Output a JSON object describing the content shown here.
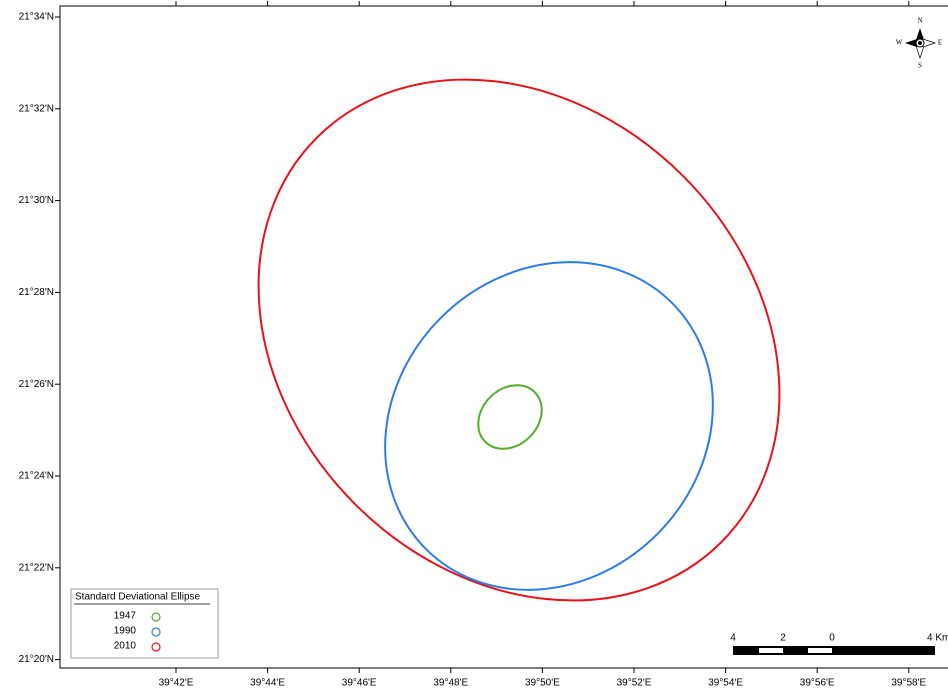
{
  "latitude_labels": [
    "21°34'N",
    "21°32'N",
    "21°30'N",
    "21°28'N",
    "21°26'N",
    "21°24'N",
    "21°22'N",
    "21°20'N"
  ],
  "longitude_labels": [
    "39°42'E",
    "39°44'E",
    "39°46'E",
    "39°48'E",
    "39°50'E",
    "39°52'E",
    "39°54'E",
    "39°56'E",
    "39°58'E"
  ],
  "legend": {
    "title": "Standard Deviational Ellipse",
    "items": [
      "1947",
      "1990",
      "2010"
    ]
  },
  "scale_bar": {
    "labels": [
      "4",
      "2",
      "0",
      "4 Km"
    ]
  },
  "compass": {
    "north": "N",
    "south": "S",
    "east": "E",
    "west": "W"
  }
}
